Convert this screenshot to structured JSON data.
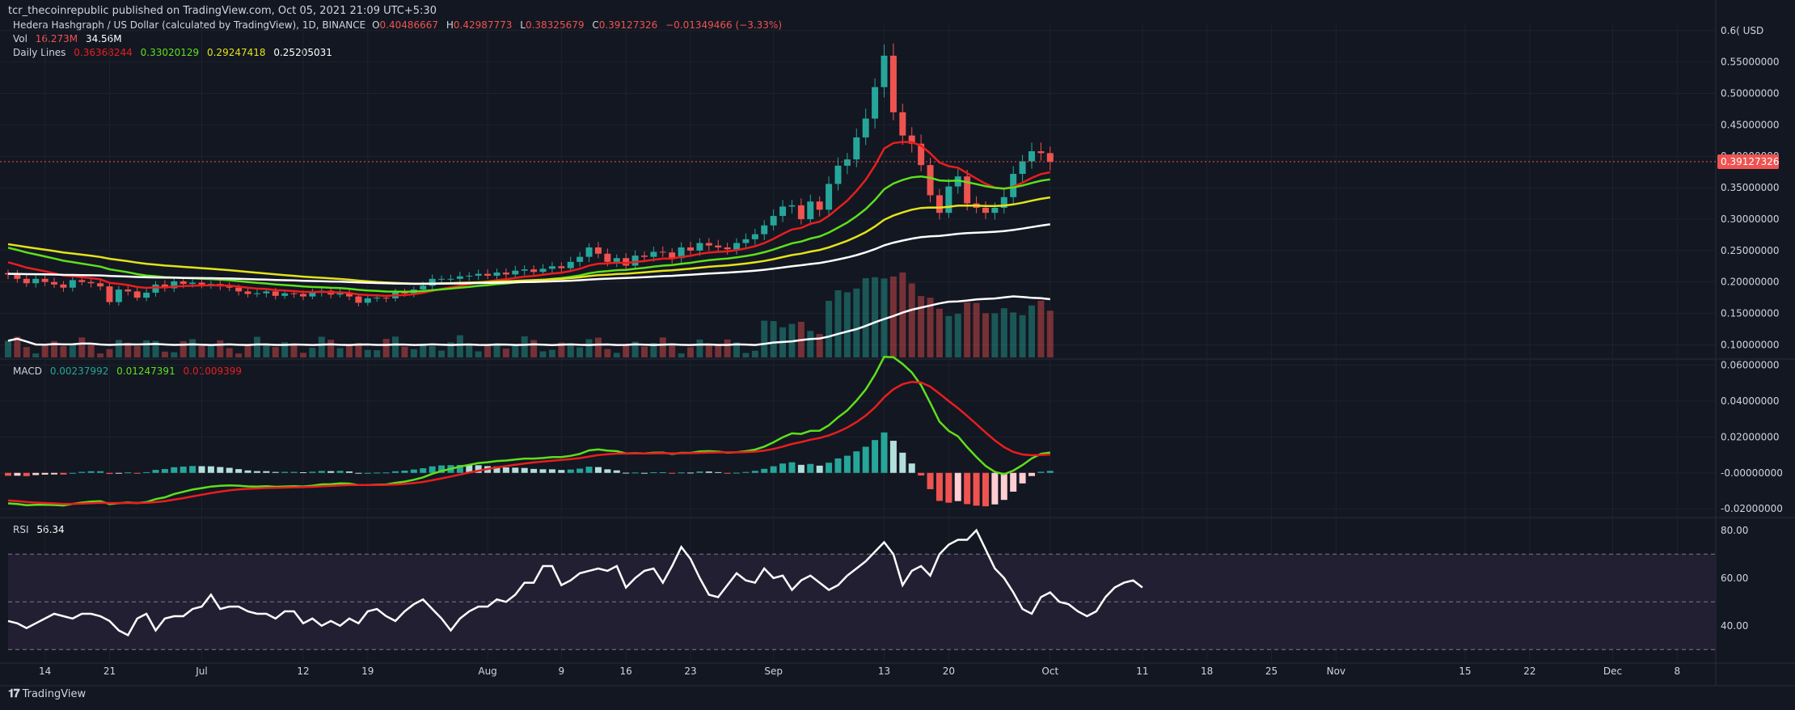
{
  "header": {
    "publisher": "tcr_thecoinrepublic published on TradingView.com, Oct 05, 2021 21:09 UTC+5:30"
  },
  "legend": {
    "symbol": "Hedera Hashgraph / US Dollar (calculated by TradingView), 1D, BINANCE",
    "o_label": "O",
    "o": "0.40486667",
    "h_label": "H",
    "h": "0.42987773",
    "l_label": "L",
    "l": "0.38325679",
    "c_label": "C",
    "c": "0.39127326",
    "change": "−0.01349466 (−3.33%)",
    "vol_label": "Vol",
    "vol1": "16.273M",
    "vol2": "34.56M",
    "lines_label": "Daily Lines",
    "line1": "0.36368244",
    "line2": "0.33020129",
    "line3": "0.29247418",
    "line4": "0.25205031",
    "macd_label": "MACD",
    "macd1": "0.00237992",
    "macd2": "0.01247391",
    "macd3": "0.01009399",
    "rsi_label": "RSI",
    "rsi_value": "56.34"
  },
  "footer": {
    "brand": "TradingView"
  },
  "colors": {
    "bg": "#131722",
    "up": "#26a69a",
    "down": "#ef5350",
    "grid": "#1e222d",
    "ema_red": "#e91e1e",
    "ema_green": "#5ee01c",
    "ema_yellow": "#e3e31a",
    "ema_white": "#ffffff",
    "macd_line": "#5ee01c",
    "signal_line": "#e91e1e",
    "rsi_line": "#ffffff",
    "rsi_band": "#231f33"
  },
  "chart_data": [
    {
      "type": "candlestick",
      "title": "Hedera Hashgraph / US Dollar (calculated by TradingView), 1D, BINANCE",
      "y_axis_unit": "USD",
      "y_ticks": [
        "0.6( USD",
        "0.55000000",
        "0.50000000",
        "0.45000000",
        "0.40000000",
        "0.35000000",
        "0.30000000",
        "0.25000000",
        "0.20000000",
        "0.15000000",
        "0.10000000"
      ],
      "ylim": [
        0.08,
        0.61
      ],
      "last_price": "0.39127326",
      "x_ticks": [
        "14",
        "21",
        "Jul",
        "12",
        "19",
        "Aug",
        "9",
        "16",
        "23",
        "Sep",
        "13",
        "20",
        "Oct",
        "11",
        "18",
        "25",
        "Nov",
        "15",
        "22",
        "Dec",
        "8"
      ],
      "x_range": "2021-06-10 to 2021-12-12",
      "candles_start": "2021-06-10",
      "closes": [
        0.212,
        0.205,
        0.198,
        0.205,
        0.2,
        0.196,
        0.191,
        0.203,
        0.2,
        0.198,
        0.193,
        0.168,
        0.188,
        0.185,
        0.175,
        0.183,
        0.196,
        0.19,
        0.201,
        0.197,
        0.199,
        0.196,
        0.197,
        0.193,
        0.191,
        0.185,
        0.181,
        0.182,
        0.185,
        0.178,
        0.182,
        0.181,
        0.177,
        0.183,
        0.186,
        0.18,
        0.183,
        0.177,
        0.167,
        0.174,
        0.175,
        0.174,
        0.183,
        0.182,
        0.188,
        0.194,
        0.205,
        0.205,
        0.205,
        0.209,
        0.21,
        0.213,
        0.21,
        0.215,
        0.212,
        0.218,
        0.22,
        0.216,
        0.221,
        0.225,
        0.222,
        0.232,
        0.24,
        0.255,
        0.245,
        0.232,
        0.238,
        0.226,
        0.242,
        0.24,
        0.248,
        0.247,
        0.238,
        0.255,
        0.25,
        0.262,
        0.258,
        0.255,
        0.252,
        0.262,
        0.268,
        0.276,
        0.29,
        0.305,
        0.32,
        0.322,
        0.3,
        0.328,
        0.315,
        0.356,
        0.385,
        0.395,
        0.43,
        0.46,
        0.51,
        0.56,
        0.47,
        0.433,
        0.42,
        0.386,
        0.338,
        0.31,
        0.352,
        0.368,
        0.325,
        0.318,
        0.31,
        0.318,
        0.335,
        0.372,
        0.392,
        0.408,
        0.405,
        0.391
      ],
      "emas": [
        {
          "values_start": 0.23,
          "values_end": 0.364,
          "last": "0.36368244"
        },
        {
          "values_start": 0.255,
          "values_end": 0.33,
          "last": "0.33020129"
        },
        {
          "values_start": 0.262,
          "values_end": 0.292,
          "last": "0.29247418"
        },
        {
          "values_start": 0.21,
          "values_end": 0.252,
          "last": "0.25205031"
        }
      ],
      "volume_label": "Vol 16.273M"
    },
    {
      "type": "line",
      "title": "MACD",
      "y_ticks": [
        "0.06000000",
        "0.04000000",
        "0.02000000",
        "-0.00000000",
        "-0.02000000"
      ],
      "ylim": [
        -0.024,
        0.063
      ],
      "series": [
        {
          "name": "MACD",
          "peak": 0.058,
          "last": 0.0125
        },
        {
          "name": "Signal",
          "peak": 0.046,
          "last": 0.0101
        }
      ],
      "histogram_last": 0.0024
    },
    {
      "type": "line",
      "title": "RSI",
      "y_ticks": [
        "80.00",
        "60.00",
        "40.00"
      ],
      "ylim": [
        25,
        85
      ],
      "band": [
        30,
        70
      ],
      "values": [
        42,
        41,
        39,
        41,
        43,
        45,
        44,
        43,
        45,
        45,
        44,
        42,
        38,
        36,
        43,
        45,
        38,
        43,
        44,
        44,
        47,
        48,
        53,
        47,
        48,
        48,
        46,
        45,
        45,
        43,
        46,
        46,
        41,
        43,
        40,
        42,
        40,
        43,
        41,
        46,
        47,
        44,
        42,
        46,
        49,
        51,
        47,
        43,
        38,
        43,
        46,
        48,
        48,
        51,
        50,
        53,
        58,
        58,
        65,
        65,
        57,
        59,
        62,
        63,
        64,
        63,
        65,
        56,
        60,
        63,
        64,
        58,
        65,
        73,
        68,
        60,
        53,
        52,
        57,
        62,
        59,
        58,
        64,
        60,
        61,
        55,
        59,
        61,
        58,
        55,
        57,
        61,
        64,
        67,
        71,
        75,
        70,
        57,
        63,
        65,
        61,
        70,
        74,
        76,
        76,
        80,
        72,
        64,
        60,
        54,
        47,
        45,
        52,
        54,
        50,
        49,
        46,
        44,
        46,
        52,
        56,
        58,
        59,
        56
      ]
    }
  ]
}
